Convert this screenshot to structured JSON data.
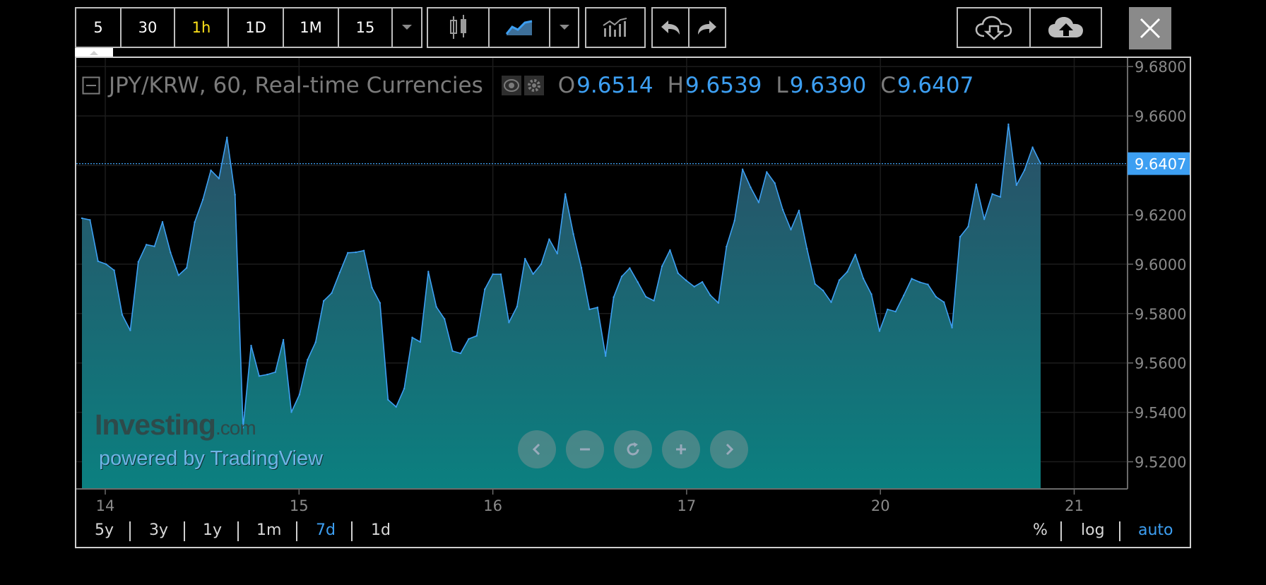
{
  "toolbar": {
    "intervals": [
      "5",
      "30",
      "1h",
      "1D",
      "1M",
      "15"
    ],
    "active_interval": "1h"
  },
  "legend": {
    "symbol": "JPY/KRW, 60, Real-time Currencies",
    "o_label": "O",
    "o_value": "9.6514",
    "h_label": "H",
    "h_value": "9.6539",
    "l_label": "L",
    "l_value": "9.6390",
    "c_label": "C",
    "c_value": "9.6407"
  },
  "price_label": "9.6407",
  "watermark": {
    "brand": "Investing",
    "brand_suffix": ".com",
    "powered": "powered by TradingView"
  },
  "ranges": [
    "5y",
    "3y",
    "1y",
    "1m",
    "7d",
    "1d"
  ],
  "active_range": "7d",
  "scale_options": [
    "%",
    "log",
    "auto"
  ],
  "active_scale": "auto",
  "colors": {
    "line": "#3d9ff2",
    "fill_top": "#2a4f66",
    "fill_bottom": "#0b8080",
    "accent": "#3d9ff2",
    "active_interval": "#ffe21a"
  },
  "chart_data": {
    "type": "area",
    "y_ticks": [
      "9.6800",
      "9.6600",
      "9.6400",
      "9.6200",
      "9.6000",
      "9.5800",
      "9.5600",
      "9.5400",
      "9.5200"
    ],
    "x_ticks": [
      "14",
      "15",
      "16",
      "17",
      "20",
      "21"
    ],
    "ylim": [
      9.509,
      9.6835
    ],
    "last_value": 9.6407,
    "values": [
      9.6186,
      9.6179,
      9.6012,
      9.6,
      9.5975,
      9.5795,
      9.5732,
      9.6009,
      9.6079,
      9.6072,
      9.6171,
      9.6047,
      9.5955,
      9.5985,
      9.617,
      9.6261,
      9.638,
      9.6347,
      9.6513,
      9.6281,
      9.5338,
      9.567,
      9.5547,
      9.5553,
      9.5563,
      9.5694,
      9.5401,
      9.5472,
      9.5613,
      9.5684,
      9.5851,
      9.5883,
      9.5966,
      9.6046,
      9.6048,
      9.6055,
      9.5905,
      9.5843,
      9.5451,
      9.5422,
      9.5496,
      9.5703,
      9.5685,
      9.597,
      9.5827,
      9.5778,
      9.5648,
      9.5639,
      9.5697,
      9.571,
      9.5898,
      9.5959,
      9.5959,
      9.5764,
      9.5828,
      9.6022,
      9.596,
      9.6,
      9.6101,
      9.6043,
      9.6284,
      9.6122,
      9.5985,
      9.5817,
      9.5825,
      9.5628,
      9.5866,
      9.595,
      9.5984,
      9.5927,
      9.5868,
      9.5852,
      9.5991,
      9.6057,
      9.5963,
      9.5934,
      9.5909,
      9.5928,
      9.5874,
      9.5843,
      9.6071,
      9.6176,
      9.6384,
      9.6311,
      9.625,
      9.6373,
      9.6328,
      9.622,
      9.614,
      9.6217,
      9.6062,
      9.592,
      9.5893,
      9.5846,
      9.5935,
      9.5969,
      9.6039,
      9.5942,
      9.5878,
      9.5729,
      9.5817,
      9.5808,
      9.5873,
      9.5941,
      9.5927,
      9.5918,
      9.5868,
      9.5846,
      9.5743,
      9.6111,
      9.6152,
      9.6323,
      9.6182,
      9.6284,
      9.6272,
      9.6566,
      9.632,
      9.6381,
      9.6473,
      9.6407
    ]
  }
}
